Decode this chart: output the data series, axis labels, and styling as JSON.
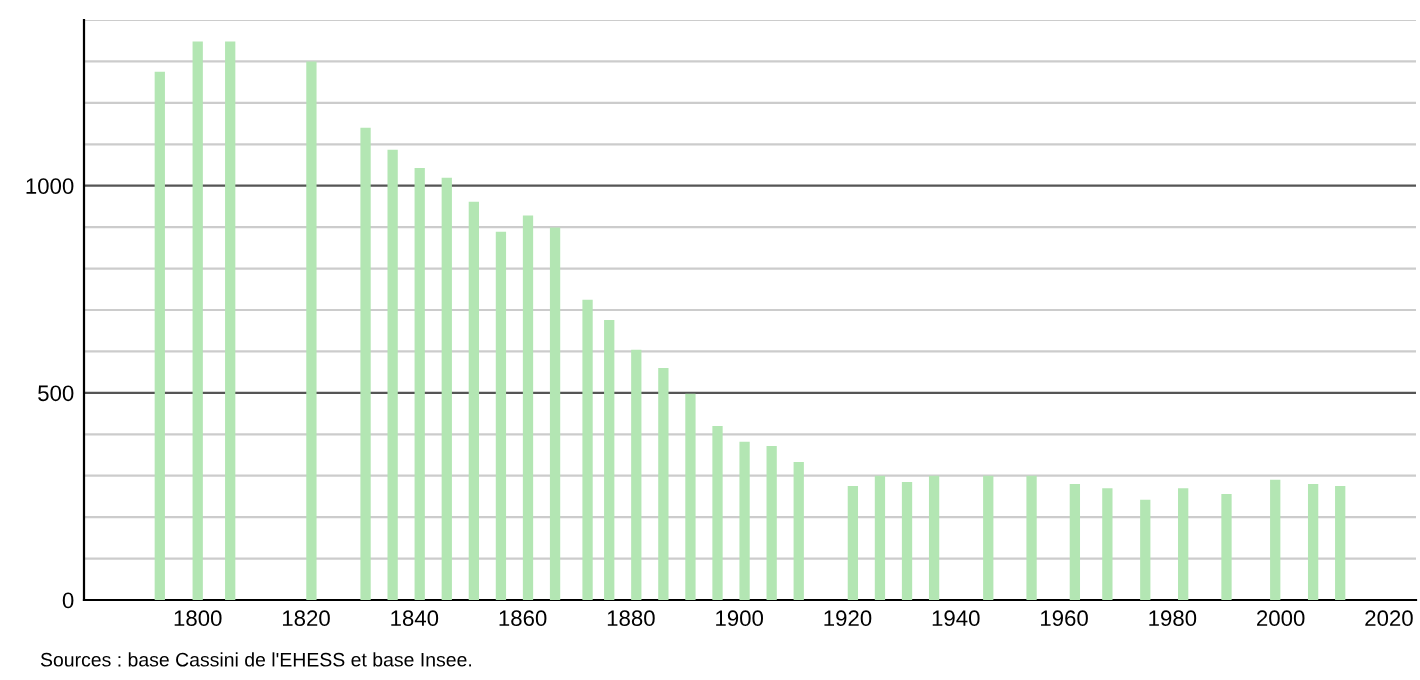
{
  "chart_data": {
    "type": "bar",
    "x": [
      1793,
      1800,
      1806,
      1821,
      1831,
      1836,
      1841,
      1846,
      1851,
      1856,
      1861,
      1866,
      1872,
      1876,
      1881,
      1886,
      1891,
      1896,
      1901,
      1906,
      1911,
      1921,
      1926,
      1931,
      1936,
      1946,
      1954,
      1962,
      1968,
      1975,
      1982,
      1990,
      1999,
      2006,
      2011
    ],
    "values": [
      1275,
      1348,
      1348,
      1300,
      1140,
      1087,
      1043,
      1019,
      961,
      889,
      928,
      899,
      725,
      676,
      604,
      560,
      498,
      420,
      382,
      372,
      333,
      275,
      300,
      285,
      300,
      300,
      300,
      280,
      270,
      242,
      270,
      256,
      290,
      280,
      275
    ],
    "color": "#b3e6b3",
    "xlim": [
      1779,
      2025
    ],
    "xticks": [
      1800,
      1820,
      1840,
      1860,
      1880,
      1900,
      1920,
      1940,
      1960,
      1980,
      2000,
      2020
    ],
    "ylim": [
      0,
      1400
    ],
    "yticks": [
      0,
      {
        "value": 100,
        "label": null
      },
      {
        "value": 200,
        "label": null
      },
      {
        "value": 300,
        "label": null
      },
      {
        "value": 400,
        "label": null
      },
      500,
      {
        "value": 600,
        "label": null
      },
      {
        "value": 700,
        "label": null
      },
      {
        "value": 800,
        "label": null
      },
      {
        "value": 900,
        "label": null
      },
      1000,
      {
        "value": 1100,
        "label": null
      },
      {
        "value": 1200,
        "label": null
      },
      {
        "value": 1300,
        "label": null
      },
      {
        "value": 1400,
        "label": null
      }
    ],
    "grid": "y",
    "annotations": [
      "Sources : base Cassini de l'EHESS et base Insee."
    ]
  }
}
